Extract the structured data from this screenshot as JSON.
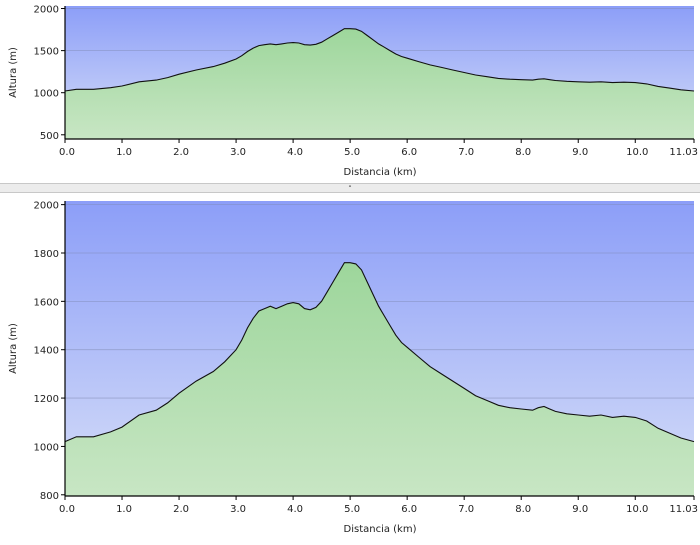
{
  "chart_data": [
    {
      "type": "area",
      "xlabel": "Distancia   (km)",
      "ylabel": "Altura (m)",
      "xlim": [
        0,
        11.03
      ],
      "ylim": [
        450,
        2030
      ],
      "xticks": [
        "0.0",
        "1.0",
        "2.0",
        "3.0",
        "4.0",
        "5.0",
        "6.0",
        "7.0",
        "8.0",
        "9.0",
        "10.0",
        "11.03"
      ],
      "yticks": [
        "500",
        "1000",
        "1500",
        "2000"
      ],
      "grid": true,
      "colors": {
        "sky_top": "#8c9ef8",
        "sky_bottom": "#d6def8",
        "fill_top": "#9dd69b",
        "fill_bottom": "#c8e6c4",
        "line": "#111111"
      },
      "x": [
        0,
        0.2,
        0.5,
        0.8,
        1.0,
        1.3,
        1.6,
        1.8,
        2.0,
        2.3,
        2.6,
        2.8,
        3.0,
        3.1,
        3.2,
        3.3,
        3.4,
        3.5,
        3.6,
        3.7,
        3.8,
        3.9,
        4.0,
        4.1,
        4.2,
        4.3,
        4.4,
        4.5,
        4.6,
        4.7,
        4.8,
        4.9,
        5.0,
        5.1,
        5.2,
        5.3,
        5.4,
        5.5,
        5.6,
        5.7,
        5.8,
        5.9,
        6.0,
        6.2,
        6.4,
        6.6,
        6.8,
        7.0,
        7.2,
        7.4,
        7.6,
        7.8,
        8.0,
        8.2,
        8.3,
        8.4,
        8.5,
        8.6,
        8.8,
        9.0,
        9.2,
        9.4,
        9.6,
        9.8,
        10.0,
        10.2,
        10.4,
        10.6,
        10.8,
        11.03
      ],
      "y": [
        1020,
        1040,
        1040,
        1060,
        1080,
        1130,
        1150,
        1180,
        1220,
        1270,
        1310,
        1350,
        1400,
        1440,
        1490,
        1530,
        1560,
        1570,
        1580,
        1570,
        1580,
        1590,
        1595,
        1590,
        1570,
        1565,
        1575,
        1600,
        1640,
        1680,
        1720,
        1760,
        1760,
        1755,
        1730,
        1680,
        1630,
        1580,
        1540,
        1500,
        1460,
        1430,
        1410,
        1370,
        1330,
        1300,
        1270,
        1240,
        1210,
        1190,
        1170,
        1160,
        1155,
        1150,
        1160,
        1165,
        1155,
        1145,
        1135,
        1130,
        1125,
        1130,
        1120,
        1125,
        1120,
        1105,
        1075,
        1055,
        1035,
        1020
      ]
    },
    {
      "type": "area",
      "xlabel": "Distancia   (km)",
      "ylabel": "Altura (m)",
      "xlim": [
        0,
        11.03
      ],
      "ylim": [
        795,
        2015
      ],
      "xticks": [
        "0.0",
        "1.0",
        "2.0",
        "3.0",
        "4.0",
        "5.0",
        "6.0",
        "7.0",
        "8.0",
        "9.0",
        "10.0",
        "11.03"
      ],
      "yticks": [
        "800",
        "1000",
        "1200",
        "1400",
        "1600",
        "1800",
        "2000"
      ],
      "grid": true,
      "colors": {
        "sky_top": "#8c9ef8",
        "sky_bottom": "#d6def8",
        "fill_top": "#9dd69b",
        "fill_bottom": "#c8e6c4",
        "line": "#111111"
      },
      "x": [
        0,
        0.2,
        0.5,
        0.8,
        1.0,
        1.3,
        1.6,
        1.8,
        2.0,
        2.3,
        2.6,
        2.8,
        3.0,
        3.1,
        3.2,
        3.3,
        3.4,
        3.5,
        3.6,
        3.7,
        3.8,
        3.9,
        4.0,
        4.1,
        4.2,
        4.3,
        4.4,
        4.5,
        4.6,
        4.7,
        4.8,
        4.9,
        5.0,
        5.1,
        5.2,
        5.3,
        5.4,
        5.5,
        5.6,
        5.7,
        5.8,
        5.9,
        6.0,
        6.2,
        6.4,
        6.6,
        6.8,
        7.0,
        7.2,
        7.4,
        7.6,
        7.8,
        8.0,
        8.2,
        8.3,
        8.4,
        8.5,
        8.6,
        8.8,
        9.0,
        9.2,
        9.4,
        9.6,
        9.8,
        10.0,
        10.2,
        10.4,
        10.6,
        10.8,
        11.03
      ],
      "y": [
        1020,
        1040,
        1040,
        1060,
        1080,
        1130,
        1150,
        1180,
        1220,
        1270,
        1310,
        1350,
        1400,
        1440,
        1490,
        1530,
        1560,
        1570,
        1580,
        1570,
        1580,
        1590,
        1595,
        1590,
        1570,
        1565,
        1575,
        1600,
        1640,
        1680,
        1720,
        1760,
        1760,
        1755,
        1730,
        1680,
        1630,
        1580,
        1540,
        1500,
        1460,
        1430,
        1410,
        1370,
        1330,
        1300,
        1270,
        1240,
        1210,
        1190,
        1170,
        1160,
        1155,
        1150,
        1160,
        1165,
        1155,
        1145,
        1135,
        1130,
        1125,
        1130,
        1120,
        1125,
        1120,
        1105,
        1075,
        1055,
        1035,
        1020
      ]
    }
  ],
  "splitter": {
    "grip": "˄"
  }
}
